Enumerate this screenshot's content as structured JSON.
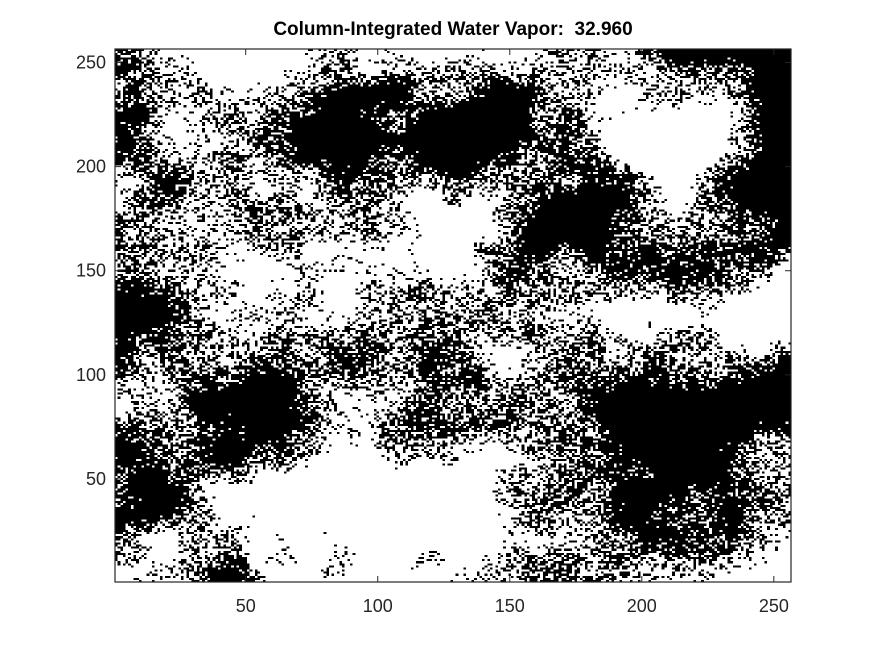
{
  "chart_data": {
    "type": "heatmap",
    "title": "Column-Integrated Water Vapor:  32.960",
    "xlabel": "",
    "ylabel": "",
    "xlim": [
      0.5,
      256.5
    ],
    "ylim": [
      0.5,
      256.5
    ],
    "y_direction": "normal",
    "grid_size": [
      256,
      256
    ],
    "colormap": [
      "#000000",
      "#ffffff"
    ],
    "x_ticks": [
      50,
      100,
      150,
      200,
      250
    ],
    "y_ticks": [
      50,
      100,
      150,
      200,
      250
    ],
    "x_tick_labels": [
      "50",
      "100",
      "150",
      "200",
      "250"
    ],
    "y_tick_labels": [
      "50",
      "100",
      "150",
      "200",
      "250"
    ],
    "grid": false
  }
}
